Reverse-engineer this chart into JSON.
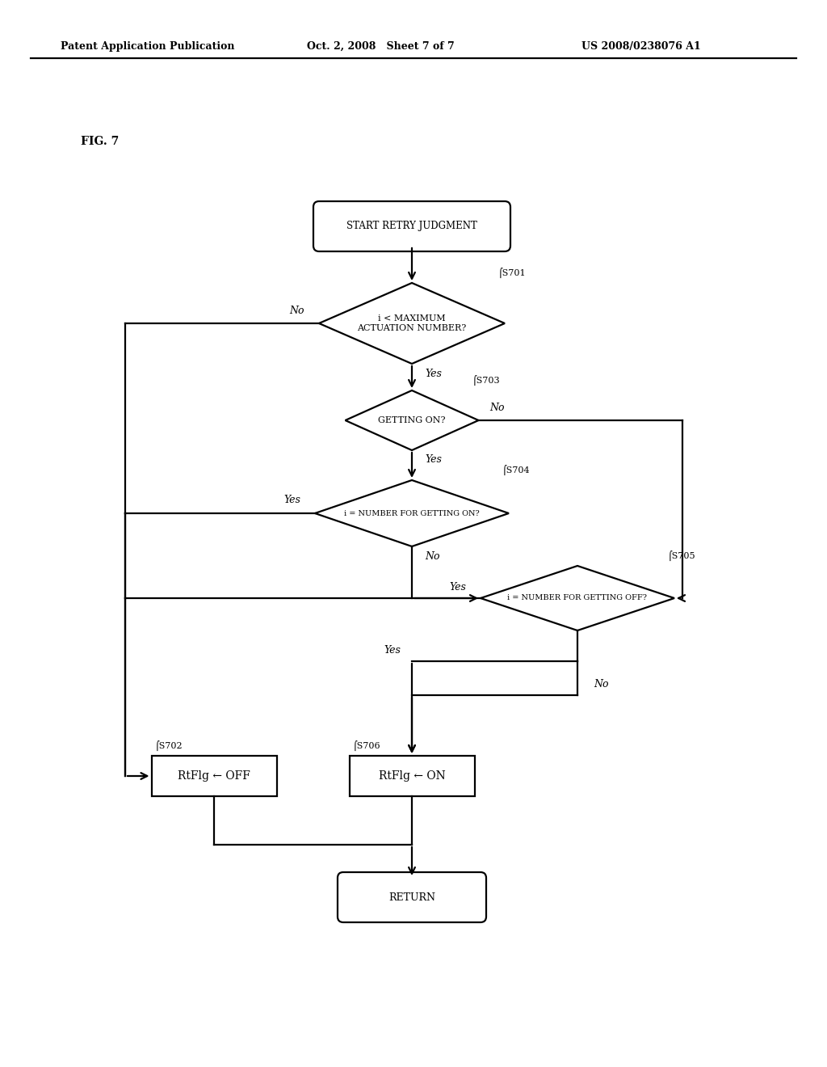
{
  "bg_color": "#ffffff",
  "header_left": "Patent Application Publication",
  "header_mid": "Oct. 2, 2008   Sheet 7 of 7",
  "header_right": "US 2008/0238076 A1",
  "fig_label": "FIG. 7",
  "start_label": "START RETRY JUDGMENT",
  "return_label": "RETURN",
  "s701_label": "i < MAXIMUM\nACTUATION NUMBER?",
  "s701_step": "⌠S701",
  "s703_label": "GETTING ON?",
  "s703_step": "⌠S703",
  "s704_label": "i = NUMBER FOR GETTING ON?",
  "s704_step": "⌠S704",
  "s705_label": "i = NUMBER FOR GETTING OFF?",
  "s705_step": "⌠S705",
  "s702_label": "RtFlg ← OFF",
  "s702_step": "⌠S702",
  "s706_label": "RtFlg ← ON",
  "s706_step": "⌠S706",
  "lw": 1.6
}
